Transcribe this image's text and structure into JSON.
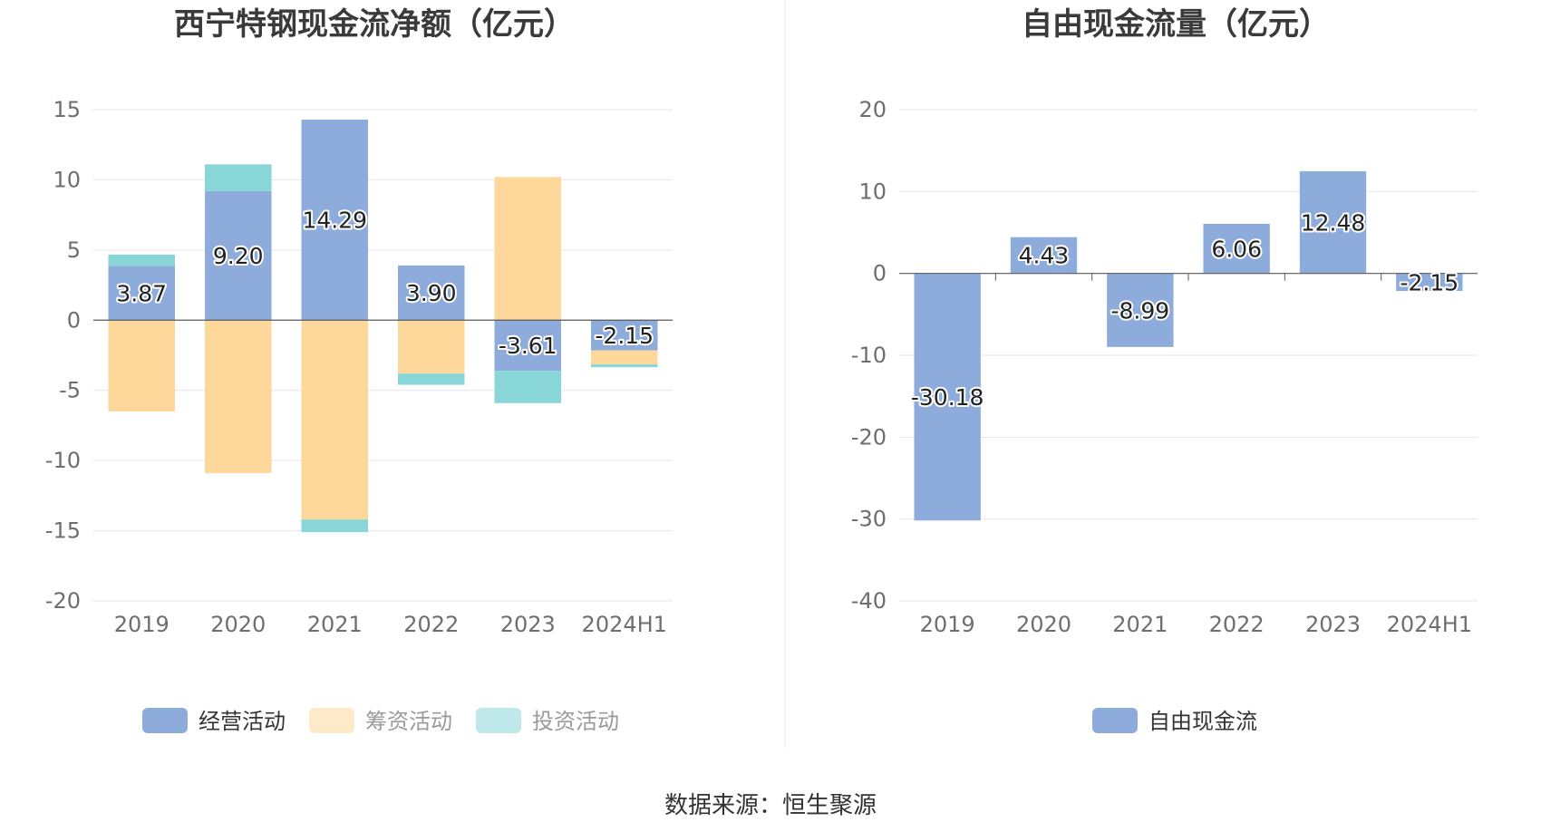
{
  "colors": {
    "operating": "#8eacdb",
    "financing": "#fdd89a",
    "investing": "#88d6d8",
    "free_cash": "#8eacdb",
    "grid": "#e3e6ee",
    "axis_text": "#6e6e6e",
    "title": "#3a3a3a"
  },
  "chart_data": [
    {
      "type": "bar",
      "stacked": true,
      "title": "西宁特钢现金流净额（亿元）",
      "categories": [
        "2019",
        "2020",
        "2021",
        "2022",
        "2023",
        "2024H1"
      ],
      "ylim": [
        -20,
        15
      ],
      "yticks": [
        "15",
        "10",
        "5",
        "0",
        "-5",
        "-10",
        "-15",
        "-20"
      ],
      "grid": true,
      "legend_position": "bottom",
      "series": [
        {
          "name": "经营活动",
          "values": [
            3.87,
            9.2,
            14.29,
            3.9,
            -3.61,
            -2.15
          ],
          "labels": [
            "3.87",
            "9.20",
            "14.29",
            "3.90",
            "-3.61",
            "-2.15"
          ]
        },
        {
          "name": "筹资活动",
          "values": [
            -6.5,
            -10.9,
            -14.2,
            -3.8,
            10.2,
            -1.0
          ]
        },
        {
          "name": "投资活动",
          "values": [
            0.8,
            1.9,
            -0.9,
            -0.8,
            -2.3,
            -0.2
          ]
        }
      ]
    },
    {
      "type": "bar",
      "title": "自由现金流量（亿元）",
      "categories": [
        "2019",
        "2020",
        "2021",
        "2022",
        "2023",
        "2024H1"
      ],
      "ylim": [
        -40,
        20
      ],
      "yticks": [
        "20",
        "10",
        "0",
        "-10",
        "-20",
        "-30",
        "-40"
      ],
      "grid": true,
      "legend_position": "bottom",
      "series": [
        {
          "name": "自由现金流",
          "values": [
            -30.18,
            4.43,
            -8.99,
            6.06,
            12.48,
            -2.15
          ],
          "labels": [
            "-30.18",
            "4.43",
            "-8.99",
            "6.06",
            "12.48",
            "-2.15"
          ]
        }
      ]
    }
  ],
  "source": "数据来源：恒生聚源"
}
